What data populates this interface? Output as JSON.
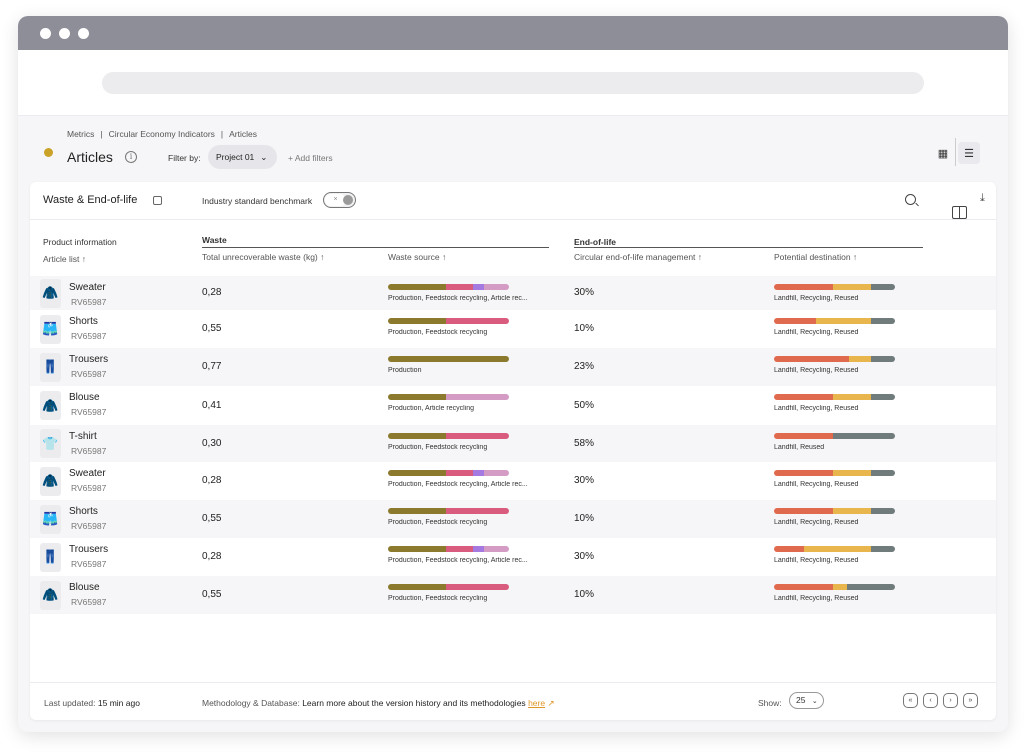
{
  "colors": {
    "production": "#8b7a2e",
    "feedstock_recycling": "#d95c7e",
    "article_recycling": "#d49bc4",
    "purple": "#a57ae0",
    "landfill": "#e06a4e",
    "recycling": "#e8b64c",
    "reused": "#707b7b",
    "status_dot": "#c9a227",
    "link": "#e0962a"
  },
  "breadcrumb": [
    "Metrics",
    "|",
    "Circular Economy Indicators",
    "|",
    "Articles"
  ],
  "page": {
    "title": "Articles",
    "info_icon": "i",
    "filter_label": "Filter by:",
    "filter_value": "Project 01",
    "add_filter": "+ Add filters"
  },
  "card": {
    "title": "Waste & End-of-life",
    "benchmark_label": "Industry standard benchmark",
    "toggle_symbol": "×"
  },
  "table": {
    "groups": {
      "product": "Product information",
      "waste": "Waste",
      "eol": "End-of-life"
    },
    "columns": {
      "article_list": "Article list ↑",
      "total_waste": "Total unrecoverable waste (kg) ↑",
      "waste_source": "Waste source ↑",
      "circular_mgmt": "Circular end-of-life management ↑",
      "potential_destination": "Potential destination ↑"
    },
    "rows": [
      {
        "name": "Sweater",
        "code": "RV65987",
        "icon": "sweater-icon",
        "glyph": "🧥",
        "waste": "0,28",
        "source_label": "Production, Feedstock recycling, Article rec...",
        "source_mix": [
          0.48,
          0.22,
          0.09,
          0.21
        ],
        "eol_pct": "30%",
        "dest_label": "Landfill, Recycling, Reused",
        "dest_mix": [
          0.49,
          0.31,
          0.2
        ]
      },
      {
        "name": "Shorts",
        "code": "RV65987",
        "icon": "shorts-icon",
        "glyph": "🩳",
        "waste": "0,55",
        "source_label": "Production, Feedstock recycling",
        "source_mix": [
          0.48,
          0.52,
          0,
          0
        ],
        "eol_pct": "10%",
        "dest_label": "Landfill, Recycling, Reused",
        "dest_mix": [
          0.35,
          0.45,
          0.2
        ]
      },
      {
        "name": "Trousers",
        "code": "RV65987",
        "icon": "trousers-icon",
        "glyph": "👖",
        "waste": "0,77",
        "source_label": "Production",
        "source_mix": [
          1,
          0,
          0,
          0
        ],
        "eol_pct": "23%",
        "dest_label": "Landfill, Recycling, Reused",
        "dest_mix": [
          0.62,
          0.18,
          0.2
        ]
      },
      {
        "name": "Blouse",
        "code": "RV65987",
        "icon": "blouse-icon",
        "glyph": "🧥",
        "waste": "0,41",
        "source_label": "Production, Article recycling",
        "source_mix": [
          0.48,
          0,
          0,
          0.52
        ],
        "eol_pct": "50%",
        "dest_label": "Landfill, Recycling, Reused",
        "dest_mix": [
          0.49,
          0.31,
          0.2
        ]
      },
      {
        "name": "T-shirt",
        "code": "RV65987",
        "icon": "tshirt-icon",
        "glyph": "👕",
        "waste": "0,30",
        "source_label": "Production, Feedstock recycling",
        "source_mix": [
          0.48,
          0.52,
          0,
          0
        ],
        "eol_pct": "58%",
        "dest_label": "Landfill, Reused",
        "dest_mix": [
          0.49,
          0,
          0.51
        ]
      },
      {
        "name": "Sweater",
        "code": "RV65987",
        "icon": "sweater-icon",
        "glyph": "🧥",
        "waste": "0,28",
        "source_label": "Production, Feedstock recycling, Article rec...",
        "source_mix": [
          0.48,
          0.22,
          0.09,
          0.21
        ],
        "eol_pct": "30%",
        "dest_label": "Landfill, Recycling, Reused",
        "dest_mix": [
          0.49,
          0.31,
          0.2
        ]
      },
      {
        "name": "Shorts",
        "code": "RV65987",
        "icon": "shorts-icon",
        "glyph": "🩳",
        "waste": "0,55",
        "source_label": "Production, Feedstock recycling",
        "source_mix": [
          0.48,
          0.52,
          0,
          0
        ],
        "eol_pct": "10%",
        "dest_label": "Landfill, Recycling, Reused",
        "dest_mix": [
          0.49,
          0.31,
          0.2
        ]
      },
      {
        "name": "Trousers",
        "code": "RV65987",
        "icon": "trousers-icon",
        "glyph": "👖",
        "waste": "0,28",
        "source_label": "Production, Feedstock recycling, Article rec...",
        "source_mix": [
          0.48,
          0.22,
          0.09,
          0.21
        ],
        "eol_pct": "30%",
        "dest_label": "Landfill, Recycling, Reused",
        "dest_mix": [
          0.25,
          0.55,
          0.2
        ]
      },
      {
        "name": "Blouse",
        "code": "RV65987",
        "icon": "blouse-icon",
        "glyph": "🧥",
        "waste": "0,55",
        "source_label": "Production, Feedstock recycling",
        "source_mix": [
          0.48,
          0.52,
          0,
          0
        ],
        "eol_pct": "10%",
        "dest_label": "Landfill, Recycling, Reused",
        "dest_mix": [
          0.49,
          0.11,
          0.4
        ]
      }
    ]
  },
  "footer": {
    "last_updated_label": "Last updated:",
    "last_updated_value": "15 min ago",
    "methodology_label": "Methodology & Database:",
    "methodology_text": "Learn more about the version history and its methodologies",
    "methodology_link": "here",
    "external_glyph": "↗",
    "show_label": "Show:",
    "page_size": "25",
    "pager": [
      "«",
      "‹",
      "›",
      "»"
    ]
  }
}
